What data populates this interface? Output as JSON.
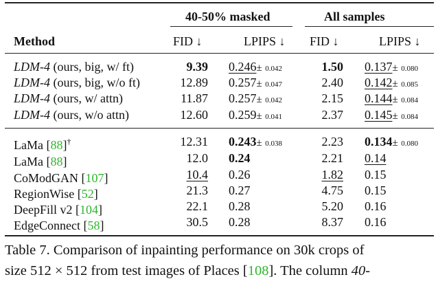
{
  "header": {
    "group1": "40-50% masked",
    "group2": "All samples",
    "method": "Method",
    "fid": "FID ↓",
    "lpips": "LPIPS ↓"
  },
  "rows": [
    {
      "model": "LDM-4",
      "desc": " (ours, big, w/ ft)",
      "ref": "",
      "dagger": "",
      "fid1": "9.39",
      "fid1_style": "bold",
      "lp1": "0.246",
      "lp1_style": "underline",
      "lp1_pm": "0.042",
      "fid2": "1.50",
      "fid2_style": "bold",
      "lp2": "0.137",
      "lp2_style": "underline",
      "lp2_pm": "0.080"
    },
    {
      "model": "LDM-4",
      "desc": " (ours, big, w/o ft)",
      "ref": "",
      "dagger": "",
      "fid1": "12.89",
      "fid1_style": "",
      "lp1": "0.257",
      "lp1_style": "",
      "lp1_pm": "0.047",
      "fid2": "2.40",
      "fid2_style": "",
      "lp2": "0.142",
      "lp2_style": "underline",
      "lp2_pm": "0.085"
    },
    {
      "model": "LDM-4",
      "desc": " (ours, w/ attn)",
      "ref": "",
      "dagger": "",
      "fid1": "11.87",
      "fid1_style": "",
      "lp1": "0.257",
      "lp1_style": "",
      "lp1_pm": "0.042",
      "fid2": "2.15",
      "fid2_style": "",
      "lp2": "0.144",
      "lp2_style": "underline",
      "lp2_pm": "0.084"
    },
    {
      "model": "LDM-4",
      "desc": " (ours, w/o attn)",
      "ref": "",
      "dagger": "",
      "fid1": "12.60",
      "fid1_style": "",
      "lp1": "0.259",
      "lp1_style": "",
      "lp1_pm": "0.041",
      "fid2": "2.37",
      "fid2_style": "",
      "lp2": "0.145",
      "lp2_style": "underline",
      "lp2_pm": "0.084"
    },
    {
      "model": "LaMa",
      "desc": "",
      "ref": "88",
      "dagger": "†",
      "fid1": "12.31",
      "fid1_style": "",
      "lp1": "0.243",
      "lp1_style": "bold",
      "lp1_pm": "0.038",
      "fid2": "2.23",
      "fid2_style": "",
      "lp2": "0.134",
      "lp2_style": "bold",
      "lp2_pm": "0.080"
    },
    {
      "model": "LaMa",
      "desc": "",
      "ref": "88",
      "dagger": "",
      "fid1": "12.0",
      "fid1_style": "",
      "lp1": "0.24",
      "lp1_style": "bold",
      "lp1_pm": "",
      "fid2": "2.21",
      "fid2_style": "",
      "lp2": "0.14",
      "lp2_style": "underline",
      "lp2_pm": ""
    },
    {
      "model": "CoModGAN",
      "desc": "",
      "ref": "107",
      "dagger": "",
      "fid1": "10.4",
      "fid1_style": "underline",
      "lp1": "0.26",
      "lp1_style": "",
      "lp1_pm": "",
      "fid2": "1.82",
      "fid2_style": "underline",
      "lp2": "0.15",
      "lp2_style": "",
      "lp2_pm": ""
    },
    {
      "model": "RegionWise",
      "desc": "",
      "ref": "52",
      "dagger": "",
      "fid1": "21.3",
      "fid1_style": "",
      "lp1": "0.27",
      "lp1_style": "",
      "lp1_pm": "",
      "fid2": "4.75",
      "fid2_style": "",
      "lp2": "0.15",
      "lp2_style": "",
      "lp2_pm": ""
    },
    {
      "model": "DeepFill v2",
      "desc": "",
      "ref": "104",
      "dagger": "",
      "fid1": "22.1",
      "fid1_style": "",
      "lp1": "0.28",
      "lp1_style": "",
      "lp1_pm": "",
      "fid2": "5.20",
      "fid2_style": "",
      "lp2": "0.16",
      "lp2_style": "",
      "lp2_pm": ""
    },
    {
      "model": "EdgeConnect",
      "desc": "",
      "ref": "58",
      "dagger": "",
      "fid1": "30.5",
      "fid1_style": "",
      "lp1": "0.28",
      "lp1_style": "",
      "lp1_pm": "",
      "fid2": "8.37",
      "fid2_style": "",
      "lp2": "0.16",
      "lp2_style": "",
      "lp2_pm": ""
    }
  ],
  "caption": {
    "line1": "Table 7.  Comparison of inpainting performance on 30k crops of",
    "line2_a": "size 512 × 512 from test images of Places [",
    "line2_ref": "108",
    "line2_b": "]. The column ",
    "line2_c": "40-"
  },
  "colors": {
    "ref": "#2db52d",
    "text": "#111111"
  }
}
